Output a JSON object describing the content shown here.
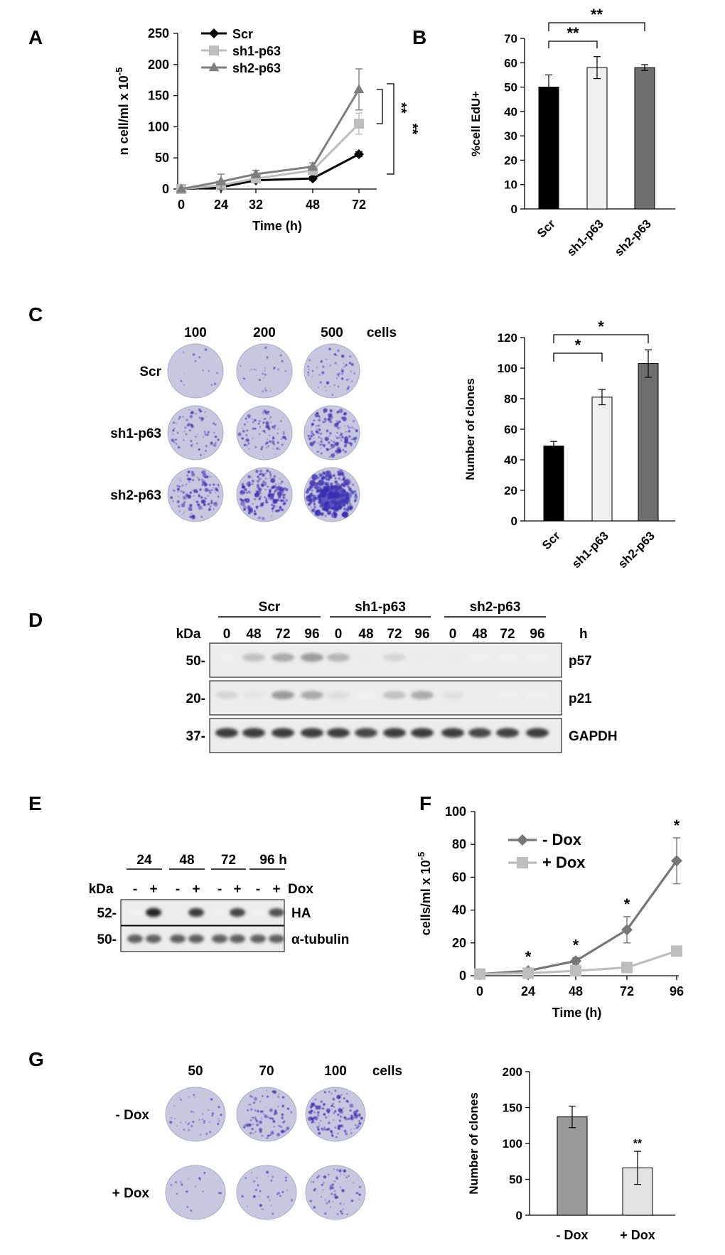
{
  "panel_labels": {
    "a": "A",
    "b": "B",
    "c": "C",
    "d": "D",
    "e": "E",
    "f": "F",
    "g": "G"
  },
  "colors": {
    "black": "#000000",
    "scr": "#000000",
    "sh1": "#bdbdbd",
    "sh2": "#7f7f7f",
    "bar_scr": "#000000",
    "bar_sh1": "#efefef",
    "bar_sh2": "#6f6f6f",
    "dox_minus": "#767676",
    "dox_plus": "#bdbdbd",
    "bar_dox_minus": "#9a9a9a",
    "bar_dox_plus": "#e3e3e3",
    "crystal_violet": "#3a2db0",
    "well_bg": "#c7c8e0",
    "blot_bg": "#ececec"
  },
  "chart_data": [
    {
      "id": "A",
      "type": "line",
      "x": [
        0,
        24,
        32,
        48,
        72
      ],
      "series": [
        {
          "name": "Scr",
          "marker": "diamond",
          "values": [
            0,
            3,
            14,
            17,
            56
          ],
          "err": [
            0,
            2,
            3,
            3,
            4
          ]
        },
        {
          "name": "sh1-p63",
          "marker": "square",
          "values": [
            0,
            6,
            17,
            30,
            105
          ],
          "err": [
            0,
            4,
            4,
            5,
            17
          ]
        },
        {
          "name": "sh2-p63",
          "marker": "triangle",
          "values": [
            0,
            12,
            24,
            36,
            160
          ],
          "err": [
            0,
            12,
            6,
            6,
            33
          ]
        }
      ],
      "xlabel": "Time (h)",
      "ylabel": "n cell/ml x 10",
      "ylabel_sup": "-5",
      "ylim": [
        0,
        250
      ],
      "yticks": [
        0,
        50,
        100,
        150,
        200,
        250
      ],
      "legend": [
        "Scr",
        "sh1-p63",
        "sh2-p63"
      ],
      "annotations": [
        "**",
        "**"
      ]
    },
    {
      "id": "B",
      "type": "bar",
      "categories": [
        "Scr",
        "sh1-p63",
        "sh2-p63"
      ],
      "values": [
        50,
        58,
        58
      ],
      "err": [
        5,
        4.5,
        1.2
      ],
      "ylabel": "%cell EdU+",
      "ylim": [
        0,
        70
      ],
      "yticks": [
        0,
        10,
        20,
        30,
        40,
        50,
        60,
        70
      ],
      "annotations": [
        "**",
        "**"
      ]
    },
    {
      "id": "C",
      "type": "bar",
      "categories": [
        "Scr",
        "sh1-p63",
        "sh2-p63"
      ],
      "values": [
        49,
        81,
        103
      ],
      "err": [
        3,
        5,
        9
      ],
      "ylabel": "Number of clones",
      "ylim": [
        0,
        120
      ],
      "yticks": [
        0,
        20,
        40,
        60,
        80,
        100,
        120
      ],
      "annotations": [
        "*",
        "*"
      ]
    },
    {
      "id": "F",
      "type": "line",
      "x": [
        0,
        24,
        48,
        72,
        96
      ],
      "series": [
        {
          "name": "- Dox",
          "marker": "diamond",
          "values": [
            1,
            3,
            9,
            28,
            70
          ],
          "err": [
            0,
            1,
            2,
            8,
            14
          ]
        },
        {
          "name": "+ Dox",
          "marker": "square",
          "values": [
            1,
            1.5,
            3,
            5,
            15
          ],
          "err": [
            0,
            0.5,
            1,
            1,
            2
          ]
        }
      ],
      "xlabel": "Time (h)",
      "ylabel": "cells/ml x 10",
      "ylabel_sup": "-5",
      "ylim": [
        0,
        100
      ],
      "yticks": [
        0,
        20,
        40,
        60,
        80,
        100
      ],
      "legend": [
        "- Dox",
        "+ Dox"
      ],
      "annotations": [
        "*",
        "*",
        "*",
        "*"
      ]
    },
    {
      "id": "G",
      "type": "bar",
      "categories": [
        "- Dox",
        "+ Dox"
      ],
      "values": [
        137,
        66
      ],
      "err": [
        15,
        23
      ],
      "ylabel": "Number of clones",
      "ylim": [
        0,
        200
      ],
      "yticks": [
        0,
        50,
        100,
        150,
        200
      ],
      "annotations": [
        "**"
      ]
    }
  ],
  "panel_c_wells": {
    "cols": [
      "100",
      "200",
      "500"
    ],
    "cols_unit": "cells",
    "rows": [
      "Scr",
      "sh1-p63",
      "sh2-p63"
    ],
    "density": [
      [
        0.02,
        0.06,
        0.18
      ],
      [
        0.22,
        0.32,
        0.5
      ],
      [
        0.42,
        0.62,
        0.95
      ]
    ]
  },
  "panel_d_blot": {
    "groups": [
      "Scr",
      "sh1-p63",
      "sh2-p63"
    ],
    "lanes": [
      "0",
      "48",
      "72",
      "96",
      "0",
      "48",
      "72",
      "96",
      "0",
      "48",
      "72",
      "96"
    ],
    "lanes_unit": "h",
    "kda": "kDa",
    "rows": [
      {
        "marker": "50-",
        "label": "p57",
        "intensity": [
          0.05,
          0.35,
          0.45,
          0.5,
          0.4,
          0.1,
          0.25,
          0.1,
          0.1,
          0.05,
          0.03,
          0.03
        ]
      },
      {
        "marker": "20-",
        "label": "p21",
        "intensity": [
          0.25,
          0.15,
          0.5,
          0.45,
          0.2,
          0.05,
          0.35,
          0.45,
          0.18,
          0.08,
          0.03,
          0.03
        ]
      },
      {
        "marker": "37-",
        "label": "GAPDH",
        "intensity": [
          0.85,
          0.85,
          0.85,
          0.85,
          0.85,
          0.8,
          0.85,
          0.85,
          0.85,
          0.8,
          0.82,
          0.85
        ]
      }
    ]
  },
  "panel_e_blot": {
    "timepoints": [
      "24",
      "48",
      "72",
      "96"
    ],
    "time_unit": "h",
    "lanes": [
      "-",
      "+",
      "-",
      "+",
      "-",
      "+",
      "-",
      "+"
    ],
    "lanes_label": "Dox",
    "kda": "kDa",
    "rows": [
      {
        "marker": "52-",
        "label": "HA",
        "intensity": [
          0.03,
          0.95,
          0.08,
          0.85,
          0.05,
          0.8,
          0.04,
          0.75
        ]
      },
      {
        "marker": "50-",
        "label": "α-tubulin",
        "intensity": [
          0.7,
          0.7,
          0.7,
          0.7,
          0.7,
          0.7,
          0.7,
          0.7
        ]
      }
    ]
  },
  "panel_g_wells": {
    "cols": [
      "50",
      "70",
      "100"
    ],
    "cols_unit": "cells",
    "rows": [
      "- Dox",
      "+ Dox"
    ],
    "density": [
      [
        0.12,
        0.28,
        0.45
      ],
      [
        0.03,
        0.08,
        0.2
      ]
    ]
  }
}
